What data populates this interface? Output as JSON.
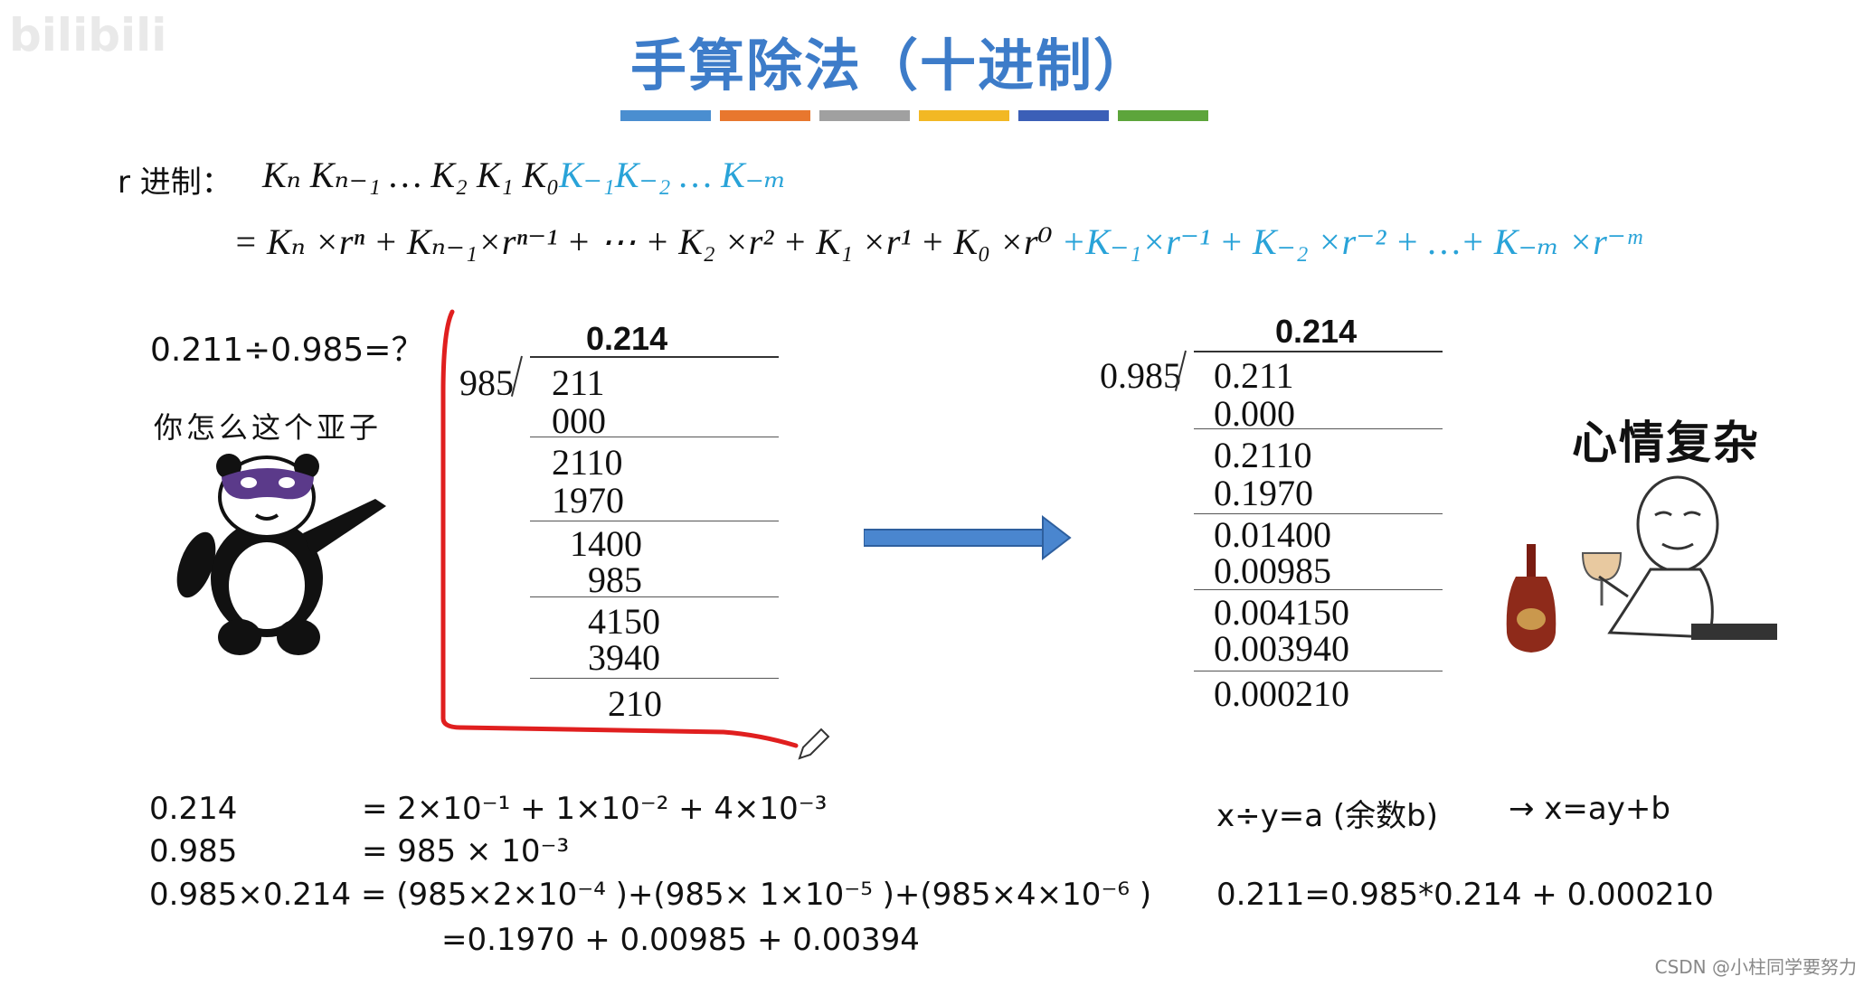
{
  "logo_text": "bilibili",
  "title": "手算除法（十进制）",
  "color_bars": [
    "#4a8ed0",
    "#e8772e",
    "#a0a0a0",
    "#f2b824",
    "#3b5fb7",
    "#5da53b"
  ],
  "radix": {
    "label": "r 进制：",
    "line1_black": "Kₙ Kₙ₋₁ … K₂ K₁ K₀",
    "line1_blue": "K₋₁K₋₂ … K₋ₘ",
    "line2_black": "= Kₙ ×rⁿ + Kₙ₋₁×rⁿ⁻¹ + ⋯ + K₂ ×r² + K₁ ×r¹ + K₀ ×r⁰",
    "line2_blue": "+K₋₁×r⁻¹ + K₋₂ ×r⁻² + …+ K₋ₘ ×r⁻ᵐ"
  },
  "question": "0.211÷0.985=？",
  "panda_caption": "你怎么这个亚子",
  "left_division": {
    "quotient": "0.214",
    "divisor": "985",
    "rows": [
      "211",
      "000",
      "2110",
      "1970",
      "1400",
      "985",
      "4150",
      "3940",
      "210"
    ]
  },
  "right_division": {
    "quotient": "0.214",
    "divisor": "0.985",
    "rows": [
      "0.211",
      "0.000",
      "0.2110",
      "0.1970",
      "0.01400",
      "0.00985",
      "0.004150",
      "0.003940",
      "0.000210"
    ]
  },
  "meme_caption": "心情复杂",
  "bottom": {
    "l1_a": "0.214",
    "l1_b": "= 2×10⁻¹ + 1×10⁻² + 4×10⁻³",
    "l2_a": "0.985",
    "l2_b": "= 985 × 10⁻³",
    "l3": "0.985×0.214 = (985×2×10⁻⁴ )+(985× 1×10⁻⁵ )+(985×4×10⁻⁶ )",
    "l4": "=0.1970 + 0.00985 + 0.00394",
    "r1_a": "x÷y=a (余数b)",
    "r1_b": "→ x=ay+b",
    "r2": "0.211=0.985*0.214 + 0.000210"
  },
  "watermark": "CSDN @小柱同学要努力"
}
